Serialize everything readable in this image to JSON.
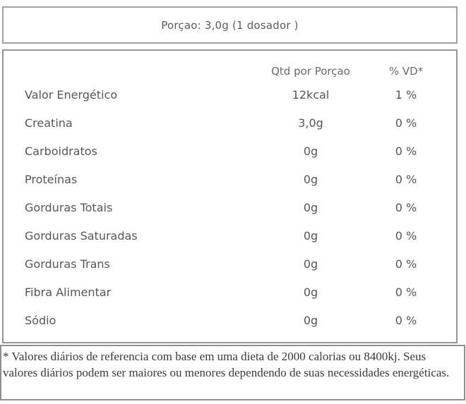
{
  "serving": {
    "label": "Porçao: 3,0g (1 dosador )"
  },
  "table": {
    "headers": {
      "name": "",
      "qty": "Qtd por Porçao",
      "dv": "% VD*"
    },
    "rows": [
      {
        "name": "Valor Energético",
        "qty": "12kcal",
        "dv": "1 %"
      },
      {
        "name": "Creatina",
        "qty": "3,0g",
        "dv": "0 %"
      },
      {
        "name": "Carboidratos",
        "qty": "0g",
        "dv": "0 %"
      },
      {
        "name": "Proteínas",
        "qty": "0g",
        "dv": "0 %"
      },
      {
        "name": "Gorduras Totais",
        "qty": "0g",
        "dv": "0 %"
      },
      {
        "name": "Gorduras Saturadas",
        "qty": "0g",
        "dv": "0 %"
      },
      {
        "name": "Gorduras Trans",
        "qty": "0g",
        "dv": "0 %"
      },
      {
        "name": "Fibra Alimentar",
        "qty": "0g",
        "dv": "0 %"
      },
      {
        "name": "Sódio",
        "qty": "0g",
        "dv": "0 %"
      }
    ]
  },
  "footnote": {
    "text": "* Valores diários de referencia com base em uma dieta de 2000 calorias ou 8400kj. Seus valores diários podem ser maiores ou menores dependendo de suas necessidades energéticas."
  },
  "colors": {
    "background": "#ffffff",
    "border": "#969696",
    "body_text": "#575757",
    "header_text": "#6b6b6b",
    "footnote_text": "#3a3a3a"
  }
}
